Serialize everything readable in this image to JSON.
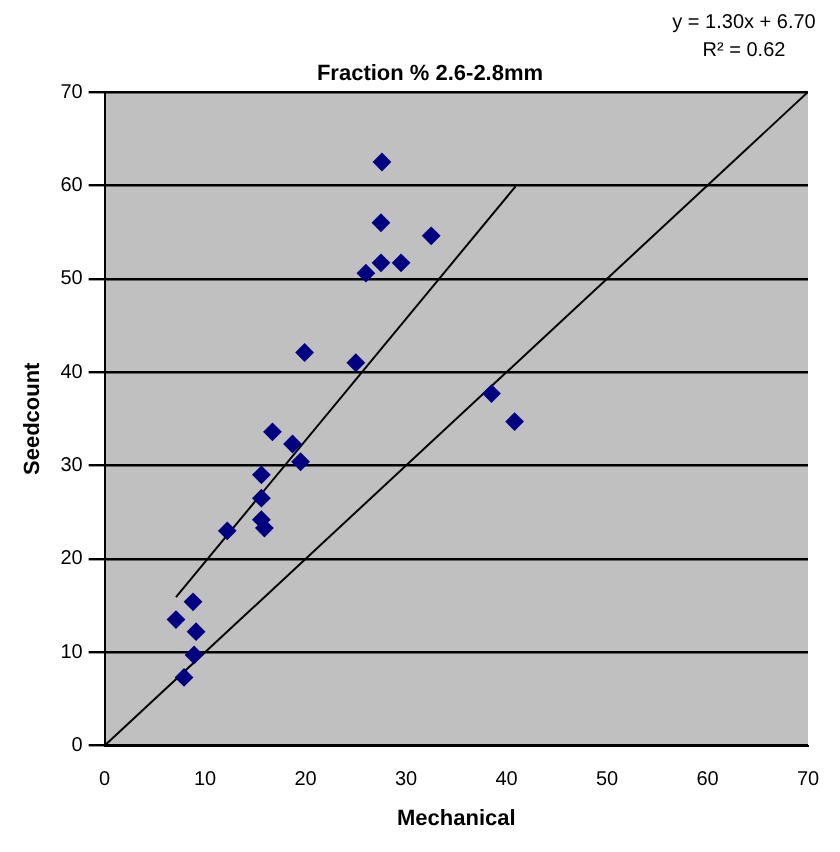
{
  "chart_data": {
    "type": "scatter",
    "title": "Fraction % 2.6-2.8mm",
    "xlabel": "Mechanical",
    "ylabel": "Seedcount",
    "annotations": [
      "y = 1.30x + 6.70",
      "R² = 0.62"
    ],
    "xlim": [
      0,
      70
    ],
    "xticks": [
      0,
      10,
      20,
      30,
      40,
      50,
      60,
      70
    ],
    "ylim": [
      0,
      70
    ],
    "yticks": [
      0,
      10,
      20,
      30,
      40,
      50,
      60,
      70
    ],
    "grid": "y",
    "legend": false,
    "series": [
      {
        "color": "#000080",
        "marker": "diamond",
        "x": [
          27.6,
          27.5,
          32.5,
          27.5,
          29.5,
          26.0,
          19.9,
          25.0,
          16.7,
          18.7,
          19.5,
          15.6,
          15.6,
          15.6,
          15.9,
          12.2,
          8.8,
          7.1,
          9.1,
          7.9,
          8.9,
          38.5,
          40.8
        ],
        "values": [
          62.5,
          56.0,
          54.6,
          51.7,
          51.7,
          50.6,
          42.1,
          41.0,
          33.6,
          32.3,
          30.4,
          29.0,
          26.5,
          24.2,
          23.3,
          23.0,
          15.4,
          13.5,
          12.2,
          7.3,
          9.7,
          37.7,
          34.7
        ]
      },
      {
        "type": "line",
        "color": "#000000",
        "marker": "none",
        "x": [
          7.1,
          40.9
        ],
        "values": [
          15.9,
          59.9
        ]
      },
      {
        "type": "line",
        "color": "#000000",
        "marker": "none",
        "x": [
          0,
          70
        ],
        "values": [
          0,
          70
        ]
      }
    ]
  }
}
